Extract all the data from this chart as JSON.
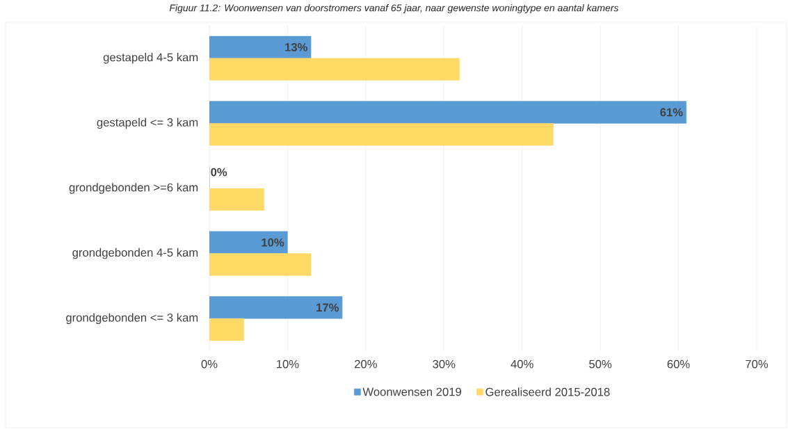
{
  "chart_data": {
    "type": "bar",
    "orientation": "horizontal",
    "title": "Figuur 11.2: Woonwensen van doorstromers vanaf 65 jaar, naar gewenste woningtype en aantal kamers",
    "categories": [
      "gestapeld 4-5 kam",
      "gestapeld <= 3 kam",
      "grondgebonden >=6 kam",
      "grondgebonden 4-5 kam",
      "grondgebonden <= 3 kam"
    ],
    "series": [
      {
        "name": "Woonwensen 2019",
        "color": "#5b9bd5",
        "values": [
          13,
          61,
          0,
          10,
          17
        ],
        "value_labels": [
          "13%",
          "61%",
          "0%",
          "10%",
          "17%"
        ]
      },
      {
        "name": "Gerealiseerd 2015-2018",
        "color": "#ffd966",
        "values": [
          32,
          44,
          7,
          13,
          4.4
        ]
      }
    ],
    "xlim": [
      0,
      70
    ],
    "xticks": [
      {
        "value": 0,
        "label": "0%"
      },
      {
        "value": 10,
        "label": "10%"
      },
      {
        "value": 20,
        "label": "20%"
      },
      {
        "value": 30,
        "label": "30%"
      },
      {
        "value": 40,
        "label": "40%"
      },
      {
        "value": 50,
        "label": "50%"
      },
      {
        "value": 60,
        "label": "60%"
      },
      {
        "value": 70,
        "label": "70%"
      }
    ],
    "grid": "x",
    "legend": "bottom"
  }
}
